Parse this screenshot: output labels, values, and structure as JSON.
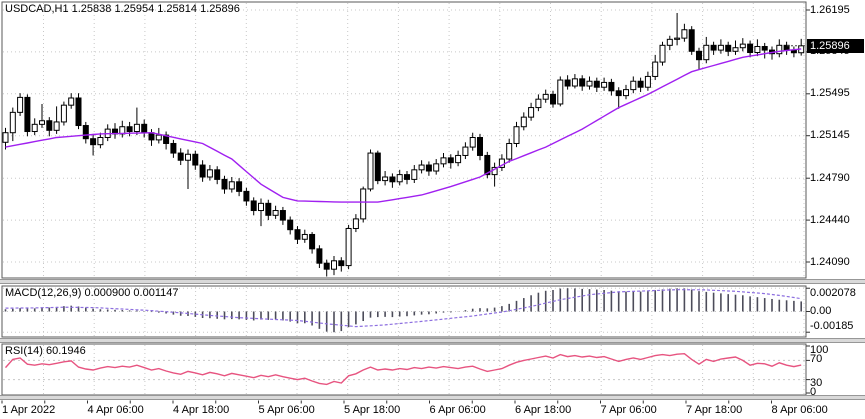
{
  "window": {
    "title": "USDCAD,H1 1.25838 1.25954 1.25814 1.25896"
  },
  "colors": {
    "background": "#ffffff",
    "panel_border": "#5a5a5a",
    "grid": "#c8c8c8",
    "candle_outline": "#000000",
    "bull_fill": "#ffffff",
    "bear_fill": "#000000",
    "ma_line": "#a020f0",
    "macd_hist": "#4c4c5a",
    "macd_signal": "#8d6fe0",
    "rsi_line": "#e75480",
    "price_box_bg": "#000000",
    "price_box_text": "#ffffff",
    "axis_text": "#000000"
  },
  "price_axis": {
    "labels": [
      1.26195,
      1.25845,
      1.25495,
      1.25145,
      1.2479,
      1.2444,
      1.2409
    ],
    "current_price_label": "1.25896"
  },
  "time_axis": {
    "labels": [
      "1 Apr 2022",
      "4 Apr 06:00",
      "4 Apr 18:00",
      "5 Apr 06:00",
      "5 Apr 18:00",
      "6 Apr 06:00",
      "6 Apr 18:00",
      "7 Apr 06:00",
      "7 Apr 18:00",
      "8 Apr 06:00"
    ]
  },
  "indicators": {
    "macd_label": "MACD(12,26,9) 0.000900 0.001147",
    "rsi_label": "RSI(14) 60.1946",
    "macd_axis": [
      "0.002078",
      "0.00",
      "-0.00185"
    ],
    "rsi_axis": [
      "100",
      "70",
      "30",
      "0"
    ]
  },
  "chart_data": [
    {
      "type": "candlestick",
      "title": "USDCAD,H1",
      "symbol": "USDCAD",
      "timeframe": "H1",
      "current_bar": {
        "open": 1.25838,
        "high": 1.25954,
        "low": 1.25814,
        "close": 1.25896
      },
      "current_price": 1.25896,
      "y_axis_ticks": [
        1.26195,
        1.25845,
        1.25495,
        1.25145,
        1.2479,
        1.2444,
        1.2409
      ],
      "ohlc": [
        [
          1.2509,
          1.2521,
          1.2503,
          1.2517
        ],
        [
          1.2517,
          1.2538,
          1.251,
          1.2534
        ],
        [
          1.2534,
          1.255,
          1.2531,
          1.25465
        ],
        [
          1.25465,
          1.2549,
          1.2514,
          1.2518
        ],
        [
          1.2518,
          1.2529,
          1.2515,
          1.2524
        ],
        [
          1.2524,
          1.2541,
          1.2521,
          1.2527
        ],
        [
          1.2527,
          1.253,
          1.2514,
          1.2519
        ],
        [
          1.2519,
          1.2539,
          1.2516,
          1.2526
        ],
        [
          1.2526,
          1.2543,
          1.2523,
          1.254
        ],
        [
          1.254,
          1.255,
          1.2537,
          1.2546
        ],
        [
          1.2546,
          1.255,
          1.252,
          1.2523
        ],
        [
          1.2523,
          1.2526,
          1.2508,
          1.2512
        ],
        [
          1.2512,
          1.2516,
          1.2498,
          1.2507
        ],
        [
          1.2507,
          1.2517,
          1.2504,
          1.2513
        ],
        [
          1.2513,
          1.2524,
          1.251,
          1.252
        ],
        [
          1.252,
          1.2525,
          1.2512,
          1.2516
        ],
        [
          1.2516,
          1.2527,
          1.2513,
          1.2522
        ],
        [
          1.2522,
          1.2526,
          1.2514,
          1.2518
        ],
        [
          1.2518,
          1.2538,
          1.2515,
          1.2524
        ],
        [
          1.2524,
          1.2528,
          1.2513,
          1.2517
        ],
        [
          1.2517,
          1.252,
          1.2506,
          1.2511
        ],
        [
          1.2511,
          1.2521,
          1.2508,
          1.2515
        ],
        [
          1.2515,
          1.2518,
          1.2503,
          1.2508
        ],
        [
          1.2508,
          1.2511,
          1.2496,
          1.25
        ],
        [
          1.25,
          1.2504,
          1.249,
          1.2494
        ],
        [
          1.2494,
          1.2503,
          1.247,
          1.2499
        ],
        [
          1.2499,
          1.2502,
          1.2486,
          1.249
        ],
        [
          1.249,
          1.2494,
          1.2476,
          1.248
        ],
        [
          1.248,
          1.249,
          1.2477,
          1.2486
        ],
        [
          1.2486,
          1.2489,
          1.2474,
          1.2478
        ],
        [
          1.2478,
          1.2481,
          1.2466,
          1.247
        ],
        [
          1.247,
          1.248,
          1.2467,
          1.2476
        ],
        [
          1.2476,
          1.2479,
          1.2464,
          1.2468
        ],
        [
          1.2468,
          1.2471,
          1.2456,
          1.246
        ],
        [
          1.246,
          1.2463,
          1.2448,
          1.2452
        ],
        [
          1.2452,
          1.2462,
          1.2439,
          1.2458
        ],
        [
          1.2458,
          1.2461,
          1.2444,
          1.2448
        ],
        [
          1.2448,
          1.2456,
          1.2445,
          1.2452
        ],
        [
          1.2452,
          1.2455,
          1.244,
          1.2444
        ],
        [
          1.2444,
          1.2447,
          1.2432,
          1.2436
        ],
        [
          1.2436,
          1.2439,
          1.2424,
          1.2428
        ],
        [
          1.2428,
          1.2436,
          1.2425,
          1.2432
        ],
        [
          1.2432,
          1.2434,
          1.2416,
          1.242
        ],
        [
          1.242,
          1.2423,
          1.2404,
          1.2408
        ],
        [
          1.2408,
          1.2411,
          1.2396,
          1.2403
        ],
        [
          1.2403,
          1.2414,
          1.2398,
          1.241
        ],
        [
          1.241,
          1.2413,
          1.2401,
          1.2406
        ],
        [
          1.2406,
          1.244,
          1.2403,
          1.2437
        ],
        [
          1.2437,
          1.2449,
          1.2434,
          1.2445
        ],
        [
          1.2445,
          1.2472,
          1.2442,
          1.247
        ],
        [
          1.247,
          1.2503,
          1.2468,
          1.25
        ],
        [
          1.25,
          1.2502,
          1.2474,
          1.2477
        ],
        [
          1.2477,
          1.2485,
          1.2473,
          1.248
        ],
        [
          1.248,
          1.2483,
          1.2471,
          1.2476
        ],
        [
          1.2476,
          1.2486,
          1.2473,
          1.2482
        ],
        [
          1.2482,
          1.2485,
          1.2474,
          1.2478
        ],
        [
          1.2478,
          1.249,
          1.2475,
          1.2486
        ],
        [
          1.2486,
          1.2494,
          1.2483,
          1.249
        ],
        [
          1.249,
          1.2493,
          1.2481,
          1.2485
        ],
        [
          1.2485,
          1.2495,
          1.2482,
          1.2491
        ],
        [
          1.2491,
          1.25,
          1.2488,
          1.2496
        ],
        [
          1.2496,
          1.2499,
          1.2487,
          1.2492
        ],
        [
          1.2492,
          1.2502,
          1.2489,
          1.2498
        ],
        [
          1.2498,
          1.2509,
          1.2495,
          1.2505
        ],
        [
          1.2505,
          1.2517,
          1.2502,
          1.2513
        ],
        [
          1.2513,
          1.2516,
          1.2494,
          1.2498
        ],
        [
          1.2498,
          1.2501,
          1.2479,
          1.2482
        ],
        [
          1.2482,
          1.2492,
          1.2472,
          1.2488
        ],
        [
          1.2488,
          1.2499,
          1.2485,
          1.2495
        ],
        [
          1.2495,
          1.2512,
          1.2492,
          1.2508
        ],
        [
          1.2508,
          1.2526,
          1.2505,
          1.2522
        ],
        [
          1.2522,
          1.2534,
          1.2519,
          1.253
        ],
        [
          1.253,
          1.2542,
          1.2527,
          1.2538
        ],
        [
          1.2538,
          1.2549,
          1.2535,
          1.2545
        ],
        [
          1.2545,
          1.2553,
          1.2542,
          1.2549
        ],
        [
          1.2549,
          1.2552,
          1.2538,
          1.2541
        ],
        [
          1.2541,
          1.2564,
          1.2539,
          1.2561
        ],
        [
          1.2561,
          1.2565,
          1.2553,
          1.2556
        ],
        [
          1.2556,
          1.2566,
          1.2554,
          1.2562
        ],
        [
          1.2562,
          1.2565,
          1.2552,
          1.2556
        ],
        [
          1.2556,
          1.2564,
          1.2553,
          1.256
        ],
        [
          1.256,
          1.2563,
          1.2551,
          1.2555
        ],
        [
          1.2555,
          1.2563,
          1.2552,
          1.2559
        ],
        [
          1.2559,
          1.2562,
          1.2548,
          1.2552
        ],
        [
          1.2552,
          1.2555,
          1.2537,
          1.2548
        ],
        [
          1.2548,
          1.2557,
          1.2545,
          1.2553
        ],
        [
          1.2553,
          1.2564,
          1.255,
          1.256
        ],
        [
          1.256,
          1.2563,
          1.2551,
          1.2555
        ],
        [
          1.2555,
          1.2568,
          1.2552,
          1.2564
        ],
        [
          1.2564,
          1.2582,
          1.2561,
          1.2576
        ],
        [
          1.2576,
          1.2593,
          1.2573,
          1.259
        ],
        [
          1.259,
          1.2598,
          1.2586,
          1.2595
        ],
        [
          1.2595,
          1.2617,
          1.259,
          1.2596
        ],
        [
          1.2596,
          1.2608,
          1.2593,
          1.2603
        ],
        [
          1.2603,
          1.2606,
          1.2582,
          1.2585
        ],
        [
          1.2585,
          1.2588,
          1.257,
          1.2578
        ],
        [
          1.2578,
          1.2597,
          1.2575,
          1.259
        ],
        [
          1.259,
          1.2593,
          1.2582,
          1.2586
        ],
        [
          1.2586,
          1.2595,
          1.2583,
          1.259
        ],
        [
          1.259,
          1.2593,
          1.2581,
          1.2585
        ],
        [
          1.2585,
          1.2594,
          1.2582,
          1.2588
        ],
        [
          1.2588,
          1.2596,
          1.2585,
          1.2591
        ],
        [
          1.2591,
          1.2594,
          1.258,
          1.2584
        ],
        [
          1.2584,
          1.2595,
          1.2581,
          1.2589
        ],
        [
          1.2589,
          1.2592,
          1.2579,
          1.2586
        ],
        [
          1.2586,
          1.2589,
          1.2578,
          1.2583
        ],
        [
          1.2583,
          1.2595,
          1.258,
          1.259
        ],
        [
          1.259,
          1.2593,
          1.2582,
          1.2586
        ],
        [
          1.2586,
          1.2589,
          1.258,
          1.25838
        ],
        [
          1.25838,
          1.25954,
          1.25814,
          1.25896
        ]
      ],
      "ma_line_anchors": [
        [
          0,
          1.2505
        ],
        [
          7,
          1.2513
        ],
        [
          13,
          1.2516
        ],
        [
          20,
          1.2517
        ],
        [
          27,
          1.2508
        ],
        [
          31,
          1.2495
        ],
        [
          35,
          1.2474
        ],
        [
          38,
          1.2463
        ],
        [
          40,
          1.246
        ],
        [
          46,
          1.2459
        ],
        [
          51,
          1.2459
        ],
        [
          57,
          1.2465
        ],
        [
          61,
          1.2472
        ],
        [
          65,
          1.248
        ],
        [
          69,
          1.2493
        ],
        [
          74,
          1.2505
        ],
        [
          79,
          1.252
        ],
        [
          84,
          1.2538
        ],
        [
          88,
          1.2549
        ],
        [
          94,
          1.2568
        ],
        [
          101,
          1.258
        ],
        [
          106,
          1.2585
        ],
        [
          109,
          1.2587
        ]
      ]
    },
    {
      "type": "bar",
      "name": "MACD(12,26,9)",
      "macd_value": 0.0009,
      "signal_value": 0.001147,
      "y_axis_ticks": [
        0.002078,
        0.0,
        -0.00185
      ],
      "histogram": [
        0.0002,
        0.00025,
        0.0003,
        0.0003,
        0.00028,
        0.00032,
        0.00035,
        0.0004,
        0.00048,
        0.00052,
        0.00045,
        0.00035,
        0.00025,
        0.0002,
        0.00018,
        0.00015,
        0.00013,
        0.0001,
        8e-05,
        2e-05,
        -5e-05,
        -0.0001,
        -0.00018,
        -0.00028,
        -0.00038,
        -0.0004,
        -0.00048,
        -0.00058,
        -0.0006,
        -0.00065,
        -0.0007,
        -0.00068,
        -0.0007,
        -0.00075,
        -0.0008,
        -0.00072,
        -0.00075,
        -0.0007,
        -0.0008,
        -0.0009,
        -0.00105,
        -0.00105,
        -0.00125,
        -0.00155,
        -0.0018,
        -0.00185,
        -0.00175,
        -0.0014,
        -0.00115,
        -0.00085,
        -0.00055,
        -0.0005,
        -0.00048,
        -0.0005,
        -0.00045,
        -0.00042,
        -0.00035,
        -0.00028,
        -0.00025,
        -0.00018,
        -0.0001,
        -8e-05,
        2e-05,
        0.00012,
        0.00025,
        0.0003,
        0.00028,
        0.00035,
        0.00048,
        0.00068,
        0.00095,
        0.0012,
        0.00145,
        0.00168,
        0.00185,
        0.00192,
        0.00205,
        0.00208,
        0.00206,
        0.00202,
        0.002,
        0.00196,
        0.00192,
        0.00186,
        0.0018,
        0.00178,
        0.0018,
        0.00178,
        0.00182,
        0.0019,
        0.00198,
        0.00204,
        0.00207,
        0.00206,
        0.00196,
        0.00182,
        0.00175,
        0.00168,
        0.00162,
        0.00155,
        0.0015,
        0.00145,
        0.00135,
        0.00128,
        0.0012,
        0.00112,
        0.00105,
        0.001,
        0.00095,
        0.0009
      ],
      "signal_anchors": [
        [
          0,
          0.0003
        ],
        [
          4,
          0.00032
        ],
        [
          8,
          0.00038
        ],
        [
          12,
          0.00035
        ],
        [
          16,
          0.00022
        ],
        [
          20,
          8e-05
        ],
        [
          24,
          -0.00012
        ],
        [
          28,
          -0.00035
        ],
        [
          32,
          -0.00055
        ],
        [
          36,
          -0.00068
        ],
        [
          40,
          -0.0008
        ],
        [
          44,
          -0.0011
        ],
        [
          48,
          -0.00135
        ],
        [
          52,
          -0.0012
        ],
        [
          56,
          -0.00095
        ],
        [
          60,
          -0.00068
        ],
        [
          64,
          -0.0004
        ],
        [
          68,
          -5e-05
        ],
        [
          72,
          0.00045
        ],
        [
          76,
          0.00105
        ],
        [
          80,
          0.0015
        ],
        [
          84,
          0.00175
        ],
        [
          88,
          0.00185
        ],
        [
          92,
          0.00195
        ],
        [
          96,
          0.00193
        ],
        [
          100,
          0.0018
        ],
        [
          104,
          0.0016
        ],
        [
          107,
          0.00135
        ],
        [
          109,
          0.001147
        ]
      ]
    },
    {
      "type": "line",
      "name": "RSI(14)",
      "value": 60.1946,
      "levels": [
        100,
        70,
        30,
        0
      ],
      "values": [
        55,
        72,
        75,
        62,
        60,
        63,
        61,
        64,
        67,
        69,
        56,
        52,
        50,
        54,
        57,
        55,
        58,
        56,
        60,
        55,
        50,
        53,
        48,
        44,
        41,
        47,
        44,
        40,
        45,
        42,
        38,
        43,
        40,
        37,
        34,
        39,
        36,
        40,
        36,
        33,
        30,
        33,
        27,
        22,
        20,
        26,
        23,
        38,
        42,
        50,
        56,
        50,
        52,
        50,
        53,
        51,
        55,
        53,
        56,
        54,
        57,
        55,
        53,
        56,
        58,
        52,
        47,
        50,
        53,
        60,
        66,
        70,
        73,
        76,
        79,
        75,
        82,
        78,
        80,
        77,
        79,
        76,
        78,
        73,
        68,
        72,
        75,
        72,
        76,
        80,
        82,
        80,
        83,
        84,
        72,
        62,
        72,
        68,
        73,
        75,
        77,
        70,
        60,
        64,
        63,
        58,
        65,
        60,
        57,
        60.1946
      ]
    }
  ]
}
